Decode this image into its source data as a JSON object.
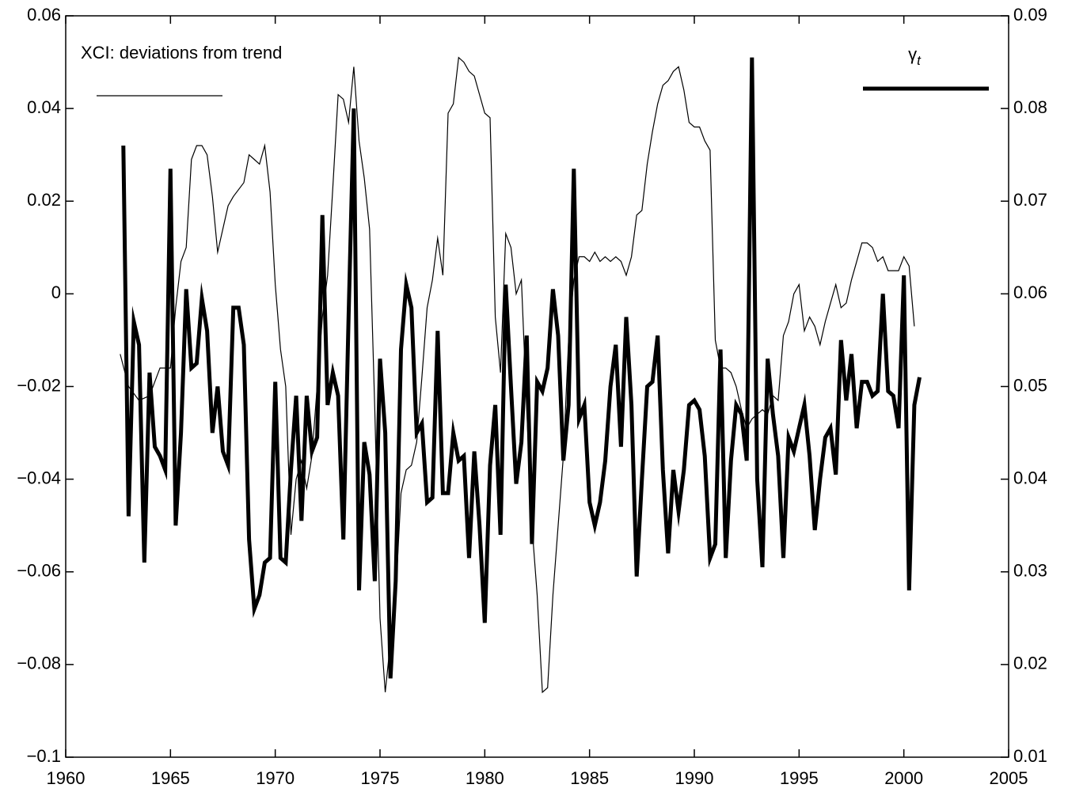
{
  "chart_data": {
    "type": "line",
    "xlim": [
      1960,
      2005
    ],
    "xticks": [
      1960,
      1965,
      1970,
      1975,
      1980,
      1985,
      1990,
      1995,
      2000,
      2005
    ],
    "ylim": [
      -0.1,
      0.06
    ],
    "yticks": [
      {
        "value": -0.1,
        "label": "−0.1"
      },
      {
        "value": -0.08,
        "label": "−0.08"
      },
      {
        "value": -0.06,
        "label": "−0.06"
      },
      {
        "value": -0.04,
        "label": "−0.04"
      },
      {
        "value": -0.02,
        "label": "−0.02"
      },
      0,
      0.02,
      0.04,
      0.06
    ],
    "y2lim": [
      0.01,
      0.09
    ],
    "y2ticks": [
      0.01,
      0.02,
      0.03,
      0.04,
      0.05,
      0.06,
      0.07,
      0.08,
      0.09
    ],
    "grid": false,
    "series": [
      {
        "name": "XCI: deviations from trend",
        "color": "#000000",
        "legend": "top-left",
        "x": [
          1962.6,
          1963,
          1963.5,
          1964,
          1964.5,
          1965,
          1965.25,
          1965.5,
          1965.75,
          1966,
          1966.25,
          1966.5,
          1966.75,
          1967,
          1967.25,
          1967.5,
          1967.75,
          1968,
          1968.5,
          1968.75,
          1969,
          1969.25,
          1969.5,
          1969.75,
          1970,
          1970.25,
          1970.5,
          1970.75,
          1971,
          1971.25,
          1971.5,
          1971.75,
          1972,
          1972.25,
          1972.5,
          1972.75,
          1973,
          1973.25,
          1973.5,
          1973.75,
          1974,
          1974.25,
          1974.5,
          1974.75,
          1975,
          1975.25,
          1975.5,
          1975.75,
          1976,
          1976.25,
          1976.5,
          1976.75,
          1977,
          1977.25,
          1977.5,
          1977.75,
          1978,
          1978.25,
          1978.5,
          1978.75,
          1979,
          1979.25,
          1979.5,
          1979.75,
          1980,
          1980.25,
          1980.5,
          1980.75,
          1981,
          1981.25,
          1981.5,
          1981.75,
          1982,
          1982.25,
          1982.5,
          1982.75,
          1983,
          1983.25,
          1983.5,
          1983.75,
          1984,
          1984.25,
          1984.5,
          1984.75,
          1985,
          1985.25,
          1985.5,
          1985.75,
          1986,
          1986.25,
          1986.5,
          1986.75,
          1987,
          1987.25,
          1987.5,
          1987.75,
          1988,
          1988.25,
          1988.5,
          1988.75,
          1989,
          1989.25,
          1989.5,
          1989.75,
          1990,
          1990.25,
          1990.5,
          1990.75,
          1991,
          1991.25,
          1991.5,
          1991.75,
          1992,
          1992.25,
          1992.5,
          1992.75,
          1993,
          1993.25,
          1993.5,
          1993.75,
          1994,
          1994.25,
          1994.5,
          1994.75,
          1995,
          1995.25,
          1995.5,
          1995.75,
          1996,
          1996.25,
          1996.5,
          1996.75,
          1997,
          1997.25,
          1997.5,
          1997.75,
          1998,
          1998.25,
          1998.5,
          1998.75,
          1999,
          1999.25,
          1999.5,
          1999.75,
          2000,
          2000.25,
          2000.5
        ],
        "values": [
          -0.013,
          -0.02,
          -0.023,
          -0.022,
          -0.016,
          -0.016,
          -0.003,
          0.007,
          0.01,
          0.029,
          0.032,
          0.032,
          0.03,
          0.021,
          0.009,
          0.014,
          0.019,
          0.021,
          0.024,
          0.03,
          0.029,
          0.028,
          0.032,
          0.022,
          0.002,
          -0.012,
          -0.02,
          -0.052,
          -0.04,
          -0.036,
          -0.042,
          -0.035,
          -0.02,
          -0.005,
          0.004,
          0.023,
          0.043,
          0.042,
          0.037,
          0.049,
          0.033,
          0.025,
          0.014,
          -0.025,
          -0.07,
          -0.086,
          -0.075,
          -0.065,
          -0.043,
          -0.038,
          -0.037,
          -0.032,
          -0.018,
          -0.003,
          0.003,
          0.012,
          0.004,
          0.039,
          0.041,
          0.051,
          0.05,
          0.048,
          0.047,
          0.043,
          0.039,
          0.038,
          -0.005,
          -0.017,
          0.013,
          0.01,
          0,
          0.003,
          -0.025,
          -0.05,
          -0.065,
          -0.086,
          -0.085,
          -0.065,
          -0.05,
          -0.035,
          -0.01,
          0.003,
          0.008,
          0.008,
          0.007,
          0.009,
          0.007,
          0.008,
          0.007,
          0.008,
          0.007,
          0.004,
          0.008,
          0.017,
          0.018,
          0.028,
          0.035,
          0.041,
          0.045,
          0.046,
          0.048,
          0.049,
          0.044,
          0.037,
          0.036,
          0.036,
          0.033,
          0.031,
          -0.01,
          -0.016,
          -0.016,
          -0.017,
          -0.02,
          -0.025,
          -0.029,
          -0.027,
          -0.026,
          -0.025,
          -0.026,
          -0.022,
          -0.023,
          -0.009,
          -0.006,
          0,
          0.002,
          -0.008,
          -0.005,
          -0.007,
          -0.011,
          -0.006,
          -0.002,
          0.002,
          -0.003,
          -0.002,
          0.003,
          0.007,
          0.011,
          0.011,
          0.01,
          0.007,
          0.008,
          0.005,
          0.005,
          0.005,
          0.008,
          0.006,
          -0.007
        ]
      },
      {
        "name": "γt",
        "color": "#000000",
        "axis": "y2",
        "legend": "top-right",
        "x": [
          1962.75,
          1963,
          1963.25,
          1963.5,
          1963.75,
          1964,
          1964.25,
          1964.5,
          1964.75,
          1965,
          1965.25,
          1965.5,
          1965.75,
          1966,
          1966.25,
          1966.5,
          1966.75,
          1967,
          1967.25,
          1967.5,
          1967.75,
          1968,
          1968.25,
          1968.5,
          1968.75,
          1969,
          1969.25,
          1969.5,
          1969.75,
          1970,
          1970.25,
          1970.5,
          1970.75,
          1971,
          1971.25,
          1971.5,
          1971.75,
          1972,
          1972.25,
          1972.5,
          1972.75,
          1973,
          1973.25,
          1973.5,
          1973.75,
          1974,
          1974.25,
          1974.5,
          1974.75,
          1975,
          1975.25,
          1975.5,
          1975.75,
          1976,
          1976.25,
          1976.5,
          1976.75,
          1977,
          1977.25,
          1977.5,
          1977.75,
          1978,
          1978.25,
          1978.5,
          1978.75,
          1979,
          1979.25,
          1979.5,
          1979.75,
          1980,
          1980.25,
          1980.5,
          1980.75,
          1981,
          1981.25,
          1981.5,
          1981.75,
          1982,
          1982.25,
          1982.5,
          1982.75,
          1983,
          1983.25,
          1983.5,
          1983.75,
          1984,
          1984.25,
          1984.5,
          1984.75,
          1985,
          1985.25,
          1985.5,
          1985.75,
          1986,
          1986.25,
          1986.5,
          1986.75,
          1987,
          1987.25,
          1987.5,
          1987.75,
          1988,
          1988.25,
          1988.5,
          1988.75,
          1989,
          1989.25,
          1989.5,
          1989.75,
          1990,
          1990.25,
          1990.5,
          1990.75,
          1991,
          1991.25,
          1991.5,
          1991.75,
          1992,
          1992.25,
          1992.5,
          1992.75,
          1993,
          1993.25,
          1993.5,
          1993.75,
          1994,
          1994.25,
          1994.5,
          1994.75,
          1995,
          1995.25,
          1995.5,
          1995.75,
          1996,
          1996.25,
          1996.5,
          1996.75,
          1997,
          1997.25,
          1997.5,
          1997.75,
          1998,
          1998.25,
          1998.5,
          1998.75,
          1999,
          1999.25,
          1999.5,
          1999.75,
          2000,
          2000.25,
          2000.5,
          2000.75
        ],
        "values": [
          0.076,
          0.036,
          0.057,
          0.0545,
          0.031,
          0.0515,
          0.0435,
          0.0425,
          0.041,
          0.0735,
          0.035,
          0.045,
          0.0605,
          0.052,
          0.0525,
          0.0595,
          0.056,
          0.045,
          0.05,
          0.043,
          0.0415,
          0.0585,
          0.0585,
          0.0545,
          0.0335,
          0.026,
          0.0275,
          0.031,
          0.0315,
          0.0505,
          0.0315,
          0.031,
          0.041,
          0.049,
          0.0355,
          0.049,
          0.043,
          0.0445,
          0.0685,
          0.048,
          0.0515,
          0.049,
          0.0335,
          0.0575,
          0.08,
          0.028,
          0.044,
          0.0405,
          0.029,
          0.053,
          0.045,
          0.0185,
          0.029,
          0.054,
          0.061,
          0.0585,
          0.045,
          0.046,
          0.0375,
          0.038,
          0.056,
          0.0385,
          0.0385,
          0.045,
          0.042,
          0.0425,
          0.0315,
          0.043,
          0.035,
          0.0245,
          0.0415,
          0.048,
          0.034,
          0.061,
          0.05,
          0.0395,
          0.044,
          0.0555,
          0.033,
          0.0505,
          0.0495,
          0.052,
          0.0605,
          0.0555,
          0.042,
          0.048,
          0.0735,
          0.0465,
          0.048,
          0.0375,
          0.035,
          0.0375,
          0.042,
          0.05,
          0.0545,
          0.0435,
          0.0575,
          0.048,
          0.0295,
          0.04,
          0.05,
          0.0505,
          0.0555,
          0.041,
          0.032,
          0.041,
          0.0365,
          0.041,
          0.048,
          0.0485,
          0.0475,
          0.0425,
          0.0315,
          0.033,
          0.054,
          0.0315,
          0.042,
          0.048,
          0.047,
          0.042,
          0.0855,
          0.04,
          0.0305,
          0.053,
          0.047,
          0.0425,
          0.0315,
          0.0445,
          0.043,
          0.0455,
          0.048,
          0.0425,
          0.0345,
          0.04,
          0.0445,
          0.0455,
          0.0405,
          0.055,
          0.0485,
          0.0535,
          0.0455,
          0.0505,
          0.0505,
          0.049,
          0.0495,
          0.06,
          0.0495,
          0.049,
          0.0455,
          0.062,
          0.028,
          0.048,
          0.051
        ]
      }
    ]
  }
}
